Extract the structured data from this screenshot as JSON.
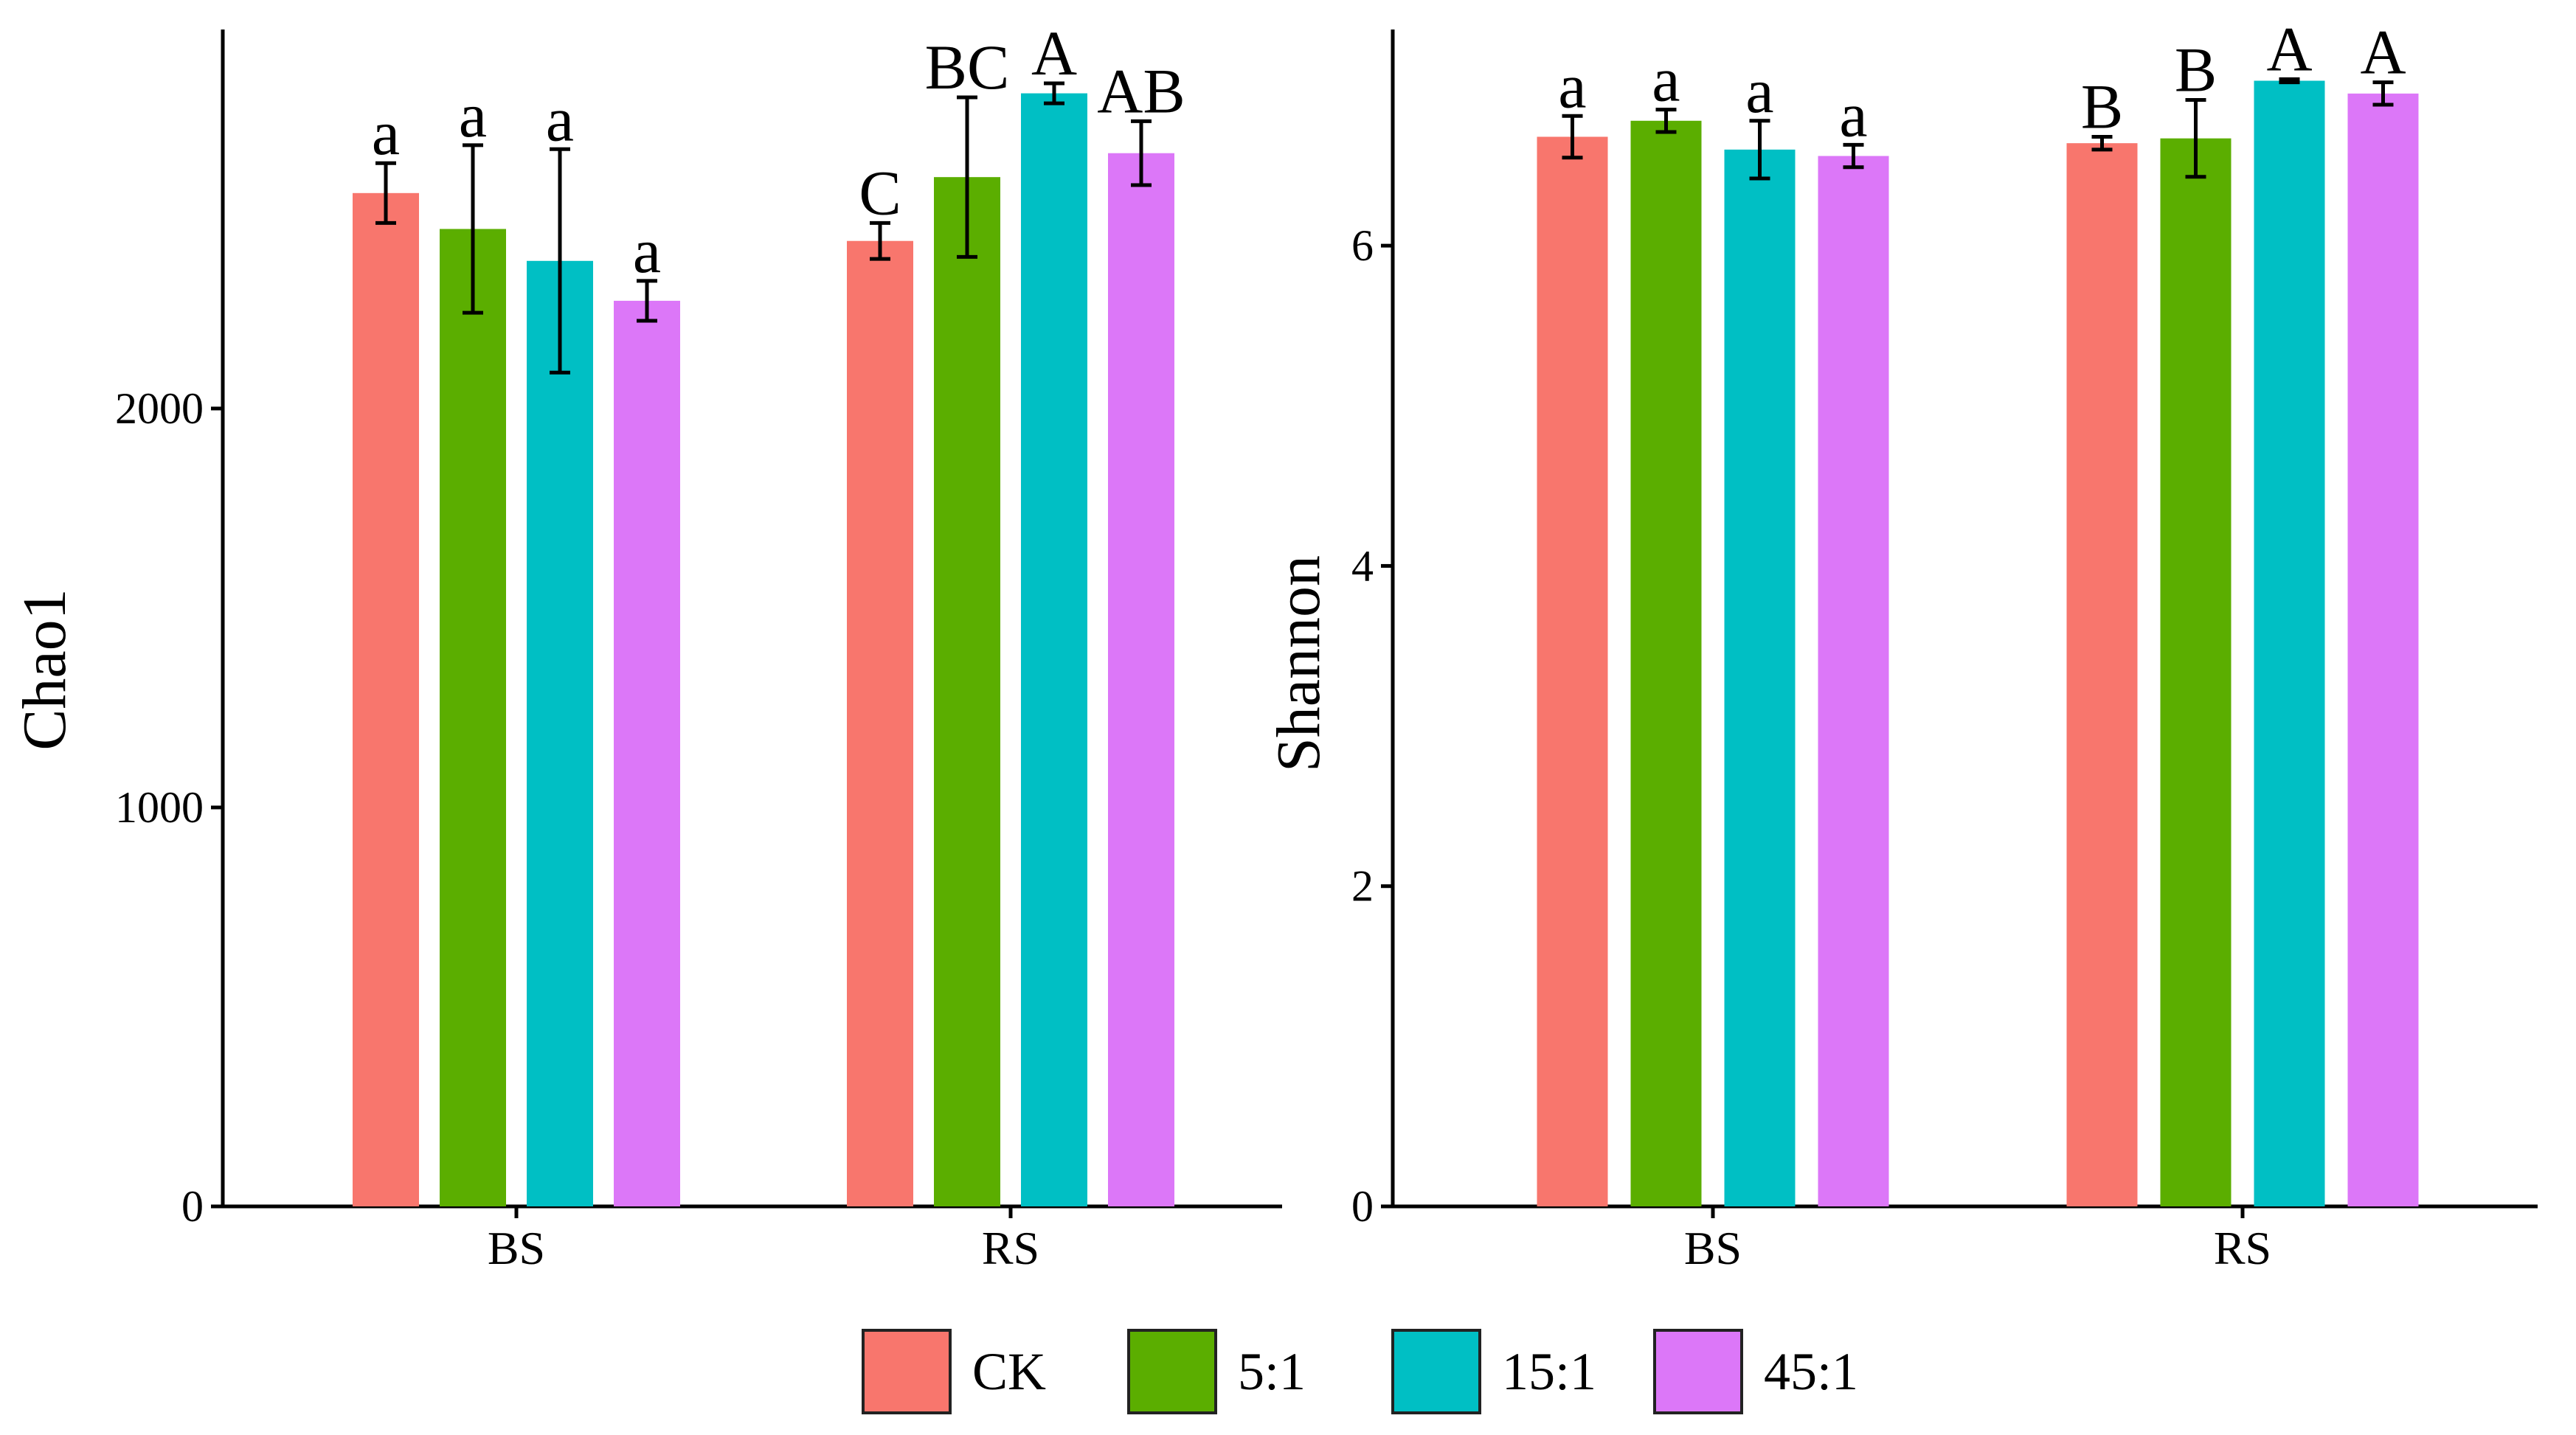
{
  "chart_data": [
    {
      "type": "bar",
      "ylabel": "Chao1",
      "xlabel": "",
      "categories": [
        "BS",
        "RS"
      ],
      "ylim": [
        0,
        2950
      ],
      "yticks": [
        0,
        1000,
        2000
      ],
      "series": [
        {
          "name": "CK",
          "color": "#F8766D",
          "values": [
            2540,
            2420
          ],
          "errors": [
            75,
            45
          ],
          "labels": [
            "a",
            "C"
          ]
        },
        {
          "name": "5:1",
          "color": "#5BAE00",
          "values": [
            2450,
            2580
          ],
          "errors": [
            210,
            200
          ],
          "labels": [
            "a",
            "BC"
          ]
        },
        {
          "name": "15:1",
          "color": "#00BFC4",
          "values": [
            2370,
            2790
          ],
          "errors": [
            280,
            25
          ],
          "labels": [
            "a",
            "A"
          ]
        },
        {
          "name": "45:1",
          "color": "#DC77F8",
          "values": [
            2270,
            2640
          ],
          "errors": [
            50,
            80
          ],
          "labels": [
            "a",
            "AB"
          ]
        }
      ]
    },
    {
      "type": "bar",
      "ylabel": "Shannon",
      "xlabel": "",
      "categories": [
        "BS",
        "RS"
      ],
      "ylim": [
        0,
        7.35
      ],
      "yticks": [
        0,
        2,
        4,
        6
      ],
      "series": [
        {
          "name": "CK",
          "color": "#F8766D",
          "values": [
            6.68,
            6.64
          ],
          "errors": [
            0.13,
            0.04
          ],
          "labels": [
            "a",
            "B"
          ]
        },
        {
          "name": "5:1",
          "color": "#5BAE00",
          "values": [
            6.78,
            6.67
          ],
          "errors": [
            0.07,
            0.24
          ],
          "labels": [
            "a",
            "B"
          ]
        },
        {
          "name": "15:1",
          "color": "#00BFC4",
          "values": [
            6.6,
            7.03
          ],
          "errors": [
            0.18,
            0.01
          ],
          "labels": [
            "a",
            "A"
          ]
        },
        {
          "name": "45:1",
          "color": "#DC77F8",
          "values": [
            6.56,
            6.95
          ],
          "errors": [
            0.07,
            0.07
          ],
          "labels": [
            "a",
            "A"
          ]
        }
      ]
    }
  ],
  "legend": {
    "position": "bottom",
    "items": [
      {
        "label": "CK",
        "color": "#F8766D"
      },
      {
        "label": "5:1",
        "color": "#5BAE00"
      },
      {
        "label": "15:1",
        "color": "#00BFC4"
      },
      {
        "label": "45:1",
        "color": "#DC77F8"
      }
    ]
  }
}
